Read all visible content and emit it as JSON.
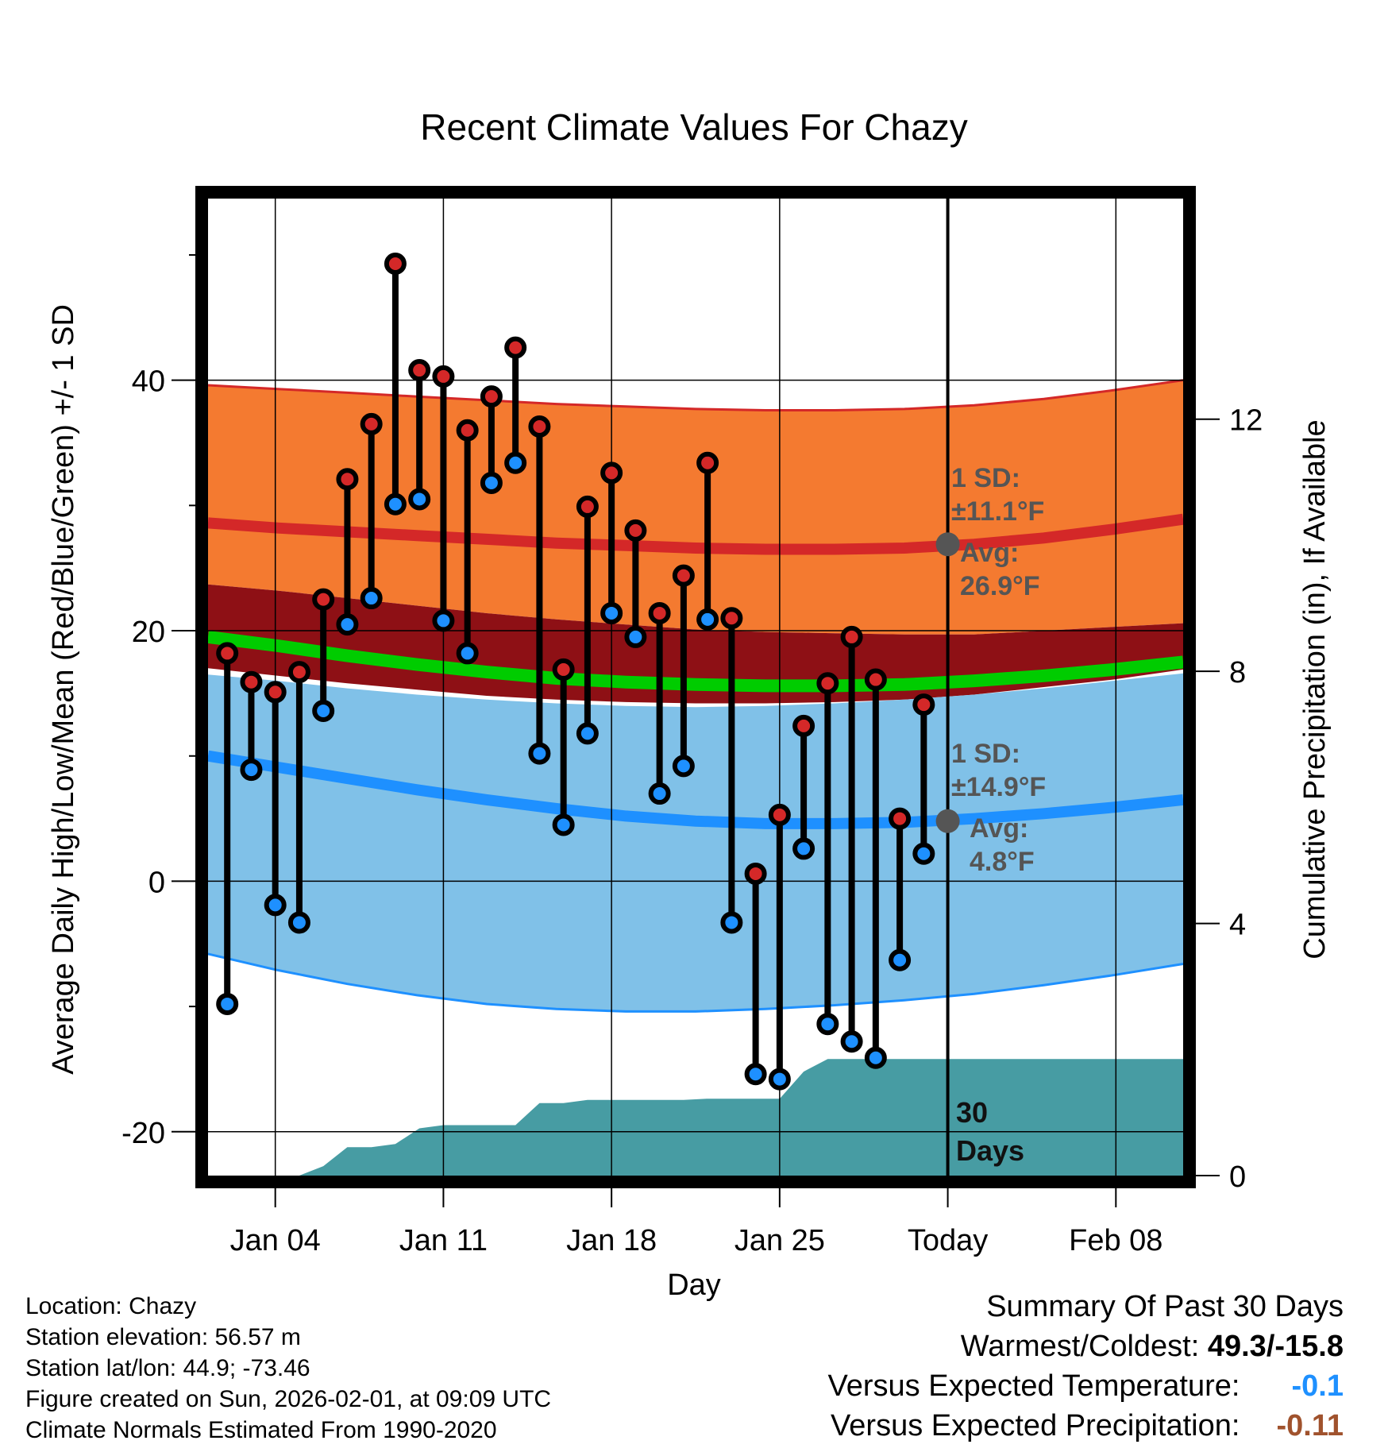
{
  "chart_data": {
    "type": "line",
    "title": "Recent Climate Values For Chazy",
    "xlabel": "Day",
    "ylabel": "Average Daily High/Low/Mean (Red/Blue/Green) +/- 1 SD",
    "y2label": "Cumulative Precipitation (in), If Available",
    "x_range_days": [
      -30.8,
      9.8
    ],
    "ylim": [
      -23.5,
      54.5
    ],
    "y2lim": [
      0,
      15.5
    ],
    "yticks": [
      -20,
      0,
      20,
      40
    ],
    "ytick_labels": [
      "-20",
      "0",
      "20",
      "40"
    ],
    "y_minor_ticks": [
      -10,
      10,
      30,
      50
    ],
    "y2ticks": [
      0,
      4,
      8,
      12
    ],
    "y2tick_labels": [
      "0",
      "4",
      "8",
      "12"
    ],
    "x_tick_days": [
      -28,
      -21,
      -14,
      -7,
      0,
      7
    ],
    "x_tick_labels": [
      "Jan 04",
      "Jan 11",
      "Jan 18",
      "Jan 25",
      "Today",
      "Feb 08"
    ],
    "today_day": 0,
    "daily_highs": [
      18.2,
      15.9,
      15.1,
      16.7,
      22.5,
      32.1,
      36.5,
      49.3,
      40.8,
      40.3,
      36.0,
      38.7,
      42.6,
      36.3,
      16.9,
      29.9,
      32.6,
      28.0,
      21.4,
      24.4,
      33.4,
      21.0,
      0.6,
      5.3,
      12.4,
      15.8,
      19.5,
      16.1,
      5.0,
      14.1
    ],
    "daily_lows": [
      -9.8,
      8.9,
      -1.9,
      -3.3,
      13.6,
      20.5,
      22.6,
      30.1,
      30.5,
      20.8,
      18.2,
      31.8,
      33.4,
      10.2,
      4.5,
      11.8,
      21.4,
      19.5,
      7.0,
      9.2,
      20.9,
      -3.3,
      -15.4,
      -15.8,
      2.6,
      -11.4,
      -12.8,
      -14.1,
      -6.3,
      2.2
    ],
    "normal_high_mean": [
      28.6,
      28.2,
      27.9,
      27.6,
      27.3,
      27.0,
      26.8,
      26.6,
      26.5,
      26.5,
      26.6,
      26.9,
      27.4,
      28.1,
      28.9
    ],
    "normal_high_upper": [
      39.6,
      39.3,
      39.0,
      38.7,
      38.4,
      38.1,
      37.9,
      37.7,
      37.6,
      37.6,
      37.7,
      38.0,
      38.5,
      39.2,
      40.0
    ],
    "normal_high_lower": [
      23.7,
      23.2,
      22.6,
      22.0,
      21.4,
      20.9,
      20.5,
      20.1,
      19.9,
      19.8,
      19.7,
      19.7,
      20.0,
      20.3,
      20.6
    ],
    "normal_mean": [
      19.5,
      18.8,
      18.0,
      17.3,
      16.7,
      16.2,
      15.9,
      15.7,
      15.6,
      15.6,
      15.7,
      16.0,
      16.4,
      16.9,
      17.5
    ],
    "normal_mean_lower": [
      17.0,
      16.4,
      15.8,
      15.3,
      14.8,
      14.5,
      14.3,
      14.2,
      14.2,
      14.3,
      14.5,
      14.9,
      15.5,
      16.1,
      16.9
    ],
    "normal_low_mean": [
      10.0,
      9.1,
      8.2,
      7.3,
      6.5,
      5.8,
      5.2,
      4.8,
      4.6,
      4.6,
      4.7,
      5.0,
      5.4,
      5.9,
      6.5
    ],
    "normal_low_upper": [
      16.5,
      16.0,
      15.4,
      14.9,
      14.5,
      14.2,
      14.0,
      13.9,
      14.0,
      14.2,
      14.5,
      14.9,
      15.4,
      16.0,
      16.6
    ],
    "normal_low_lower": [
      -5.8,
      -7.1,
      -8.2,
      -9.1,
      -9.8,
      -10.2,
      -10.4,
      -10.4,
      -10.2,
      -9.9,
      -9.5,
      -9.0,
      -8.3,
      -7.5,
      -6.6
    ],
    "normal_days": [
      -30.8,
      -27.9,
      -25.0,
      -22.1,
      -19.2,
      -16.3,
      -13.4,
      -10.5,
      -7.6,
      -4.7,
      -1.8,
      1.1,
      4.0,
      6.9,
      9.8
    ],
    "precip_days": [
      -30.8,
      -29,
      -27,
      -26,
      -25,
      -24,
      -23,
      -22,
      -21,
      -20,
      -19,
      -18,
      -17,
      -16,
      -15,
      -14,
      -13,
      -12,
      -11,
      -10,
      -9,
      -8,
      -7,
      -6,
      -5,
      -4,
      -3,
      -2,
      -1,
      0,
      9.8
    ],
    "precip_cumulative": [
      0,
      0,
      0,
      0.15,
      0.45,
      0.45,
      0.5,
      0.75,
      0.8,
      0.8,
      0.8,
      0.8,
      1.15,
      1.15,
      1.2,
      1.2,
      1.2,
      1.2,
      1.2,
      1.22,
      1.22,
      1.22,
      1.22,
      1.65,
      1.85,
      1.85,
      1.85,
      1.85,
      1.85,
      1.85,
      1.85
    ],
    "high_sd_label": "1 SD:",
    "high_sd_value": "±11.1°F",
    "high_avg_label": "Avg:",
    "high_avg_value": "26.9°F",
    "high_avg_point": 26.9,
    "low_sd_label": "1 SD:",
    "low_sd_value": "±14.9°F",
    "low_avg_label": "Avg:",
    "low_avg_value": "4.8°F",
    "low_avg_point": 4.8,
    "period_label_line1": "30",
    "period_label_line2": "Days",
    "colors": {
      "high_band": "#f47a30",
      "high_line": "#d42828",
      "mid_band": "#8e1015",
      "mean_line": "#00cc00",
      "low_band": "#80c1e8",
      "low_line": "#1e90ff",
      "precip": "#479ca3",
      "high_dot": "#d42828",
      "low_dot": "#1e90ff",
      "avg_marker": "#555555"
    }
  },
  "footer": {
    "location": "Location: Chazy",
    "elevation": "Station elevation: 56.57 m",
    "latlon": "Station lat/lon: 44.9; -73.46",
    "created": "Figure created on Sun, 2026-02-01, at 09:09 UTC",
    "normals": "Climate Normals Estimated From 1990-2020"
  },
  "summary": {
    "title": "Summary Of Past 30 Days",
    "warm_cold_label": "Warmest/Coldest:",
    "warm_cold_value": "49.3/-15.8",
    "temp_label": "Versus Expected Temperature:",
    "temp_value": "-0.1",
    "precip_label": "Versus Expected Precipitation:",
    "precip_value": "-0.11"
  }
}
